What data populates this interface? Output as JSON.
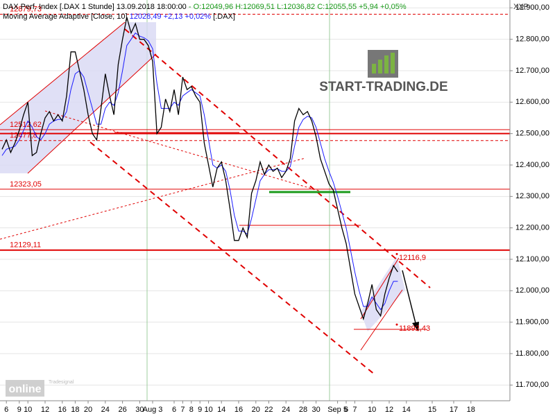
{
  "chart_data": {
    "type": "line",
    "timestamp": "13.09.2018 18:00:00",
    "ohlc": "- O:12049,96 H:12069,51 L:12036,82 C:12055,55 +5,94 +0,05%",
    "ma_readout": "12028,49 +2,13 +0,02%",
    "ma_source": "[.DAX]",
    "symbol": "XXP",
    "categories": [
      null,
      "6",
      null,
      null,
      "9",
      null,
      "10",
      null,
      null,
      null,
      "12",
      null,
      null,
      null,
      "16",
      null,
      null,
      "18",
      null,
      null,
      "20",
      null,
      null,
      null,
      "24",
      null,
      null,
      null,
      "26",
      null,
      null,
      null,
      "30",
      null,
      null,
      "Aug 3",
      null,
      null,
      null,
      null,
      "6",
      null,
      "7",
      null,
      "8",
      null,
      "9",
      null,
      "10",
      null,
      null,
      "14",
      null,
      null,
      null,
      "16",
      null,
      null,
      null,
      "20",
      null,
      null,
      "22",
      null,
      null,
      null,
      "24",
      null,
      null,
      null,
      "28",
      null,
      null,
      "30",
      null,
      null,
      null,
      null,
      "Sep 5",
      null,
      "6",
      null,
      "7",
      null,
      null,
      null,
      "10",
      null,
      null,
      null,
      "12",
      null,
      null,
      null,
      "14",
      null,
      null,
      null,
      null,
      null,
      "15",
      null,
      null,
      null,
      null,
      "17",
      null,
      null,
      null,
      "18",
      null,
      null,
      null,
      null,
      null,
      null,
      null,
      null
    ],
    "series": [
      {
        "name": "DAX Perf. Index [.DAX  1 Stunde]",
        "color": "#000000",
        "values": [
          12450,
          12480,
          12440,
          12470,
          12510,
          12560,
          12600,
          12430,
          12440,
          12500,
          12550,
          12570,
          12540,
          12560,
          12540,
          12620,
          12760,
          12760,
          12700,
          12640,
          12560,
          12500,
          12480,
          12580,
          12690,
          12620,
          12560,
          12720,
          12800,
          12870,
          12820,
          12850,
          12800,
          12800,
          12780,
          12730,
          12500,
          12520,
          12610,
          12570,
          12640,
          12560,
          12680,
          12640,
          12650,
          12620,
          12600,
          12470,
          12400,
          12330,
          12390,
          12410,
          12350,
          12260,
          12160,
          12160,
          12200,
          12170,
          12310,
          12350,
          12410,
          12370,
          12400,
          12380,
          12390,
          12360,
          12380,
          12420,
          12540,
          12580,
          12560,
          12570,
          12540,
          12490,
          12420,
          12380,
          12340,
          12320,
          12260,
          12200,
          12150,
          12070,
          11990,
          11950,
          11910,
          11960,
          12020,
          11940,
          11920,
          11990,
          12040,
          12080,
          12060,
          null,
          null,
          null,
          null,
          null,
          null,
          null,
          null,
          null,
          null,
          null,
          null,
          null,
          null,
          null,
          null,
          null,
          null,
          null,
          null,
          null,
          null,
          null,
          null,
          null
        ]
      },
      {
        "name": "Moving Average Adaptive [Close, 10]",
        "color": "#1a1aff",
        "values": [
          12430,
          12450,
          12455,
          12460,
          12480,
          12510,
          12540,
          12520,
          12490,
          12480,
          12500,
          12530,
          12540,
          12545,
          12545,
          12570,
          12640,
          12690,
          12700,
          12680,
          12630,
          12580,
          12530,
          12530,
          12580,
          12600,
          12590,
          12630,
          12700,
          12780,
          12800,
          12820,
          12810,
          12805,
          12795,
          12770,
          12660,
          12580,
          12580,
          12580,
          12600,
          12590,
          12620,
          12630,
          12640,
          12630,
          12620,
          12560,
          12480,
          12400,
          12390,
          12400,
          12380,
          12320,
          12240,
          12190,
          12190,
          12180,
          12230,
          12290,
          12350,
          12370,
          12385,
          12385,
          12388,
          12380,
          12380,
          12395,
          12460,
          12520,
          12545,
          12555,
          12550,
          12520,
          12470,
          12420,
          12380,
          12345,
          12300,
          12250,
          12200,
          12130,
          12060,
          12000,
          11950,
          11950,
          11980,
          11960,
          11940,
          11960,
          12000,
          12030,
          12030,
          null,
          null,
          null,
          null,
          null,
          null,
          null,
          null,
          null,
          null,
          null,
          null,
          null,
          null,
          null,
          null,
          null,
          null,
          null,
          null,
          null,
          null,
          null,
          null,
          null
        ]
      }
    ],
    "ylim": [
      11650,
      12925
    ],
    "yticks": [
      {
        "value": 11700,
        "label": "11.700,00"
      },
      {
        "value": 11800,
        "label": "11.800,00"
      },
      {
        "value": 11900,
        "label": "11.900,00"
      },
      {
        "value": 12000,
        "label": "12.000,00"
      },
      {
        "value": 12100,
        "label": "12.100,00"
      },
      {
        "value": 12200,
        "label": "12.200,00"
      },
      {
        "value": 12300,
        "label": "12.300,00"
      },
      {
        "value": 12400,
        "label": "12.400,00"
      },
      {
        "value": 12500,
        "label": "12.500,00"
      },
      {
        "value": 12600,
        "label": "12.600,00"
      },
      {
        "value": 12700,
        "label": "12.700,00"
      },
      {
        "value": 12800,
        "label": "12.800,00"
      },
      {
        "value": 12900,
        "label": "12.900,00"
      }
    ],
    "grid": true,
    "level_color": "#e00000",
    "levels": [
      {
        "value": 12879.73,
        "label": "12879,73",
        "style": "dashed"
      },
      {
        "value": 12512.62,
        "label": "12512,62",
        "style": "thin"
      },
      {
        "value": 12500,
        "style": "thick"
      },
      {
        "value": 12477.8,
        "label": "12477,8",
        "style": "dashed"
      },
      {
        "value": 12323.05,
        "label": "12323,05",
        "style": "thin"
      },
      {
        "value": 12129.11,
        "label": "12129,11",
        "style": "thick"
      }
    ],
    "annotations": [
      {
        "value": 12116.9,
        "label": "12116,9"
      },
      {
        "value": 11892.43,
        "label": "11892,43"
      }
    ]
  },
  "logo": "START-TRADING.DE",
  "watermark": {
    "brand": "Tradesignal",
    "word": "online"
  }
}
